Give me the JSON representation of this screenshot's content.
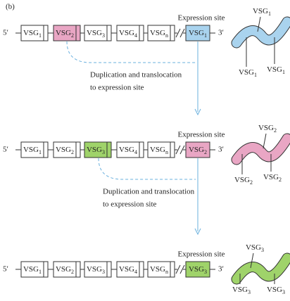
{
  "label": "(b)",
  "rows": [
    {
      "five": "5′",
      "three": "3′",
      "site_label": "Expression site",
      "genes": [
        {
          "name": "VSG",
          "sub": "1"
        },
        {
          "name": "VSG",
          "sub": "2"
        },
        {
          "name": "VSG",
          "sub": "3"
        },
        {
          "name": "VSG",
          "sub": "4"
        },
        {
          "name": "VSG",
          "sub": "n"
        }
      ],
      "site_gene": {
        "name": "VSG",
        "sub": "1"
      },
      "coat_labels": [
        {
          "name": "VSG",
          "sub": "1"
        },
        {
          "name": "VSG",
          "sub": "1"
        },
        {
          "name": "VSG",
          "sub": "1"
        }
      ]
    },
    {
      "five": "5′",
      "three": "3′",
      "site_label": "Expression site",
      "genes": [
        {
          "name": "VSG",
          "sub": "1"
        },
        {
          "name": "VSG",
          "sub": "2"
        },
        {
          "name": "VSG",
          "sub": "3"
        },
        {
          "name": "VSG",
          "sub": "4"
        },
        {
          "name": "VSG",
          "sub": "n"
        }
      ],
      "site_gene": {
        "name": "VSG",
        "sub": "2"
      },
      "coat_labels": [
        {
          "name": "VSG",
          "sub": "2"
        },
        {
          "name": "VSG",
          "sub": "2"
        },
        {
          "name": "VSG",
          "sub": "2"
        }
      ]
    },
    {
      "five": "5′",
      "three": "3′",
      "site_label": "Expression site",
      "genes": [
        {
          "name": "VSG",
          "sub": "1"
        },
        {
          "name": "VSG",
          "sub": "2"
        },
        {
          "name": "VSG",
          "sub": "3"
        },
        {
          "name": "VSG",
          "sub": "4"
        },
        {
          "name": "VSG",
          "sub": "n"
        }
      ],
      "site_gene": {
        "name": "VSG",
        "sub": "3"
      },
      "coat_labels": [
        {
          "name": "VSG",
          "sub": "3"
        },
        {
          "name": "VSG",
          "sub": "3"
        },
        {
          "name": "VSG",
          "sub": "3"
        }
      ]
    }
  ],
  "arrows": [
    {
      "lines": [
        "Duplication and translocation",
        "to expression site"
      ]
    },
    {
      "lines": [
        "Duplication and translocation",
        "to expression site"
      ]
    }
  ]
}
